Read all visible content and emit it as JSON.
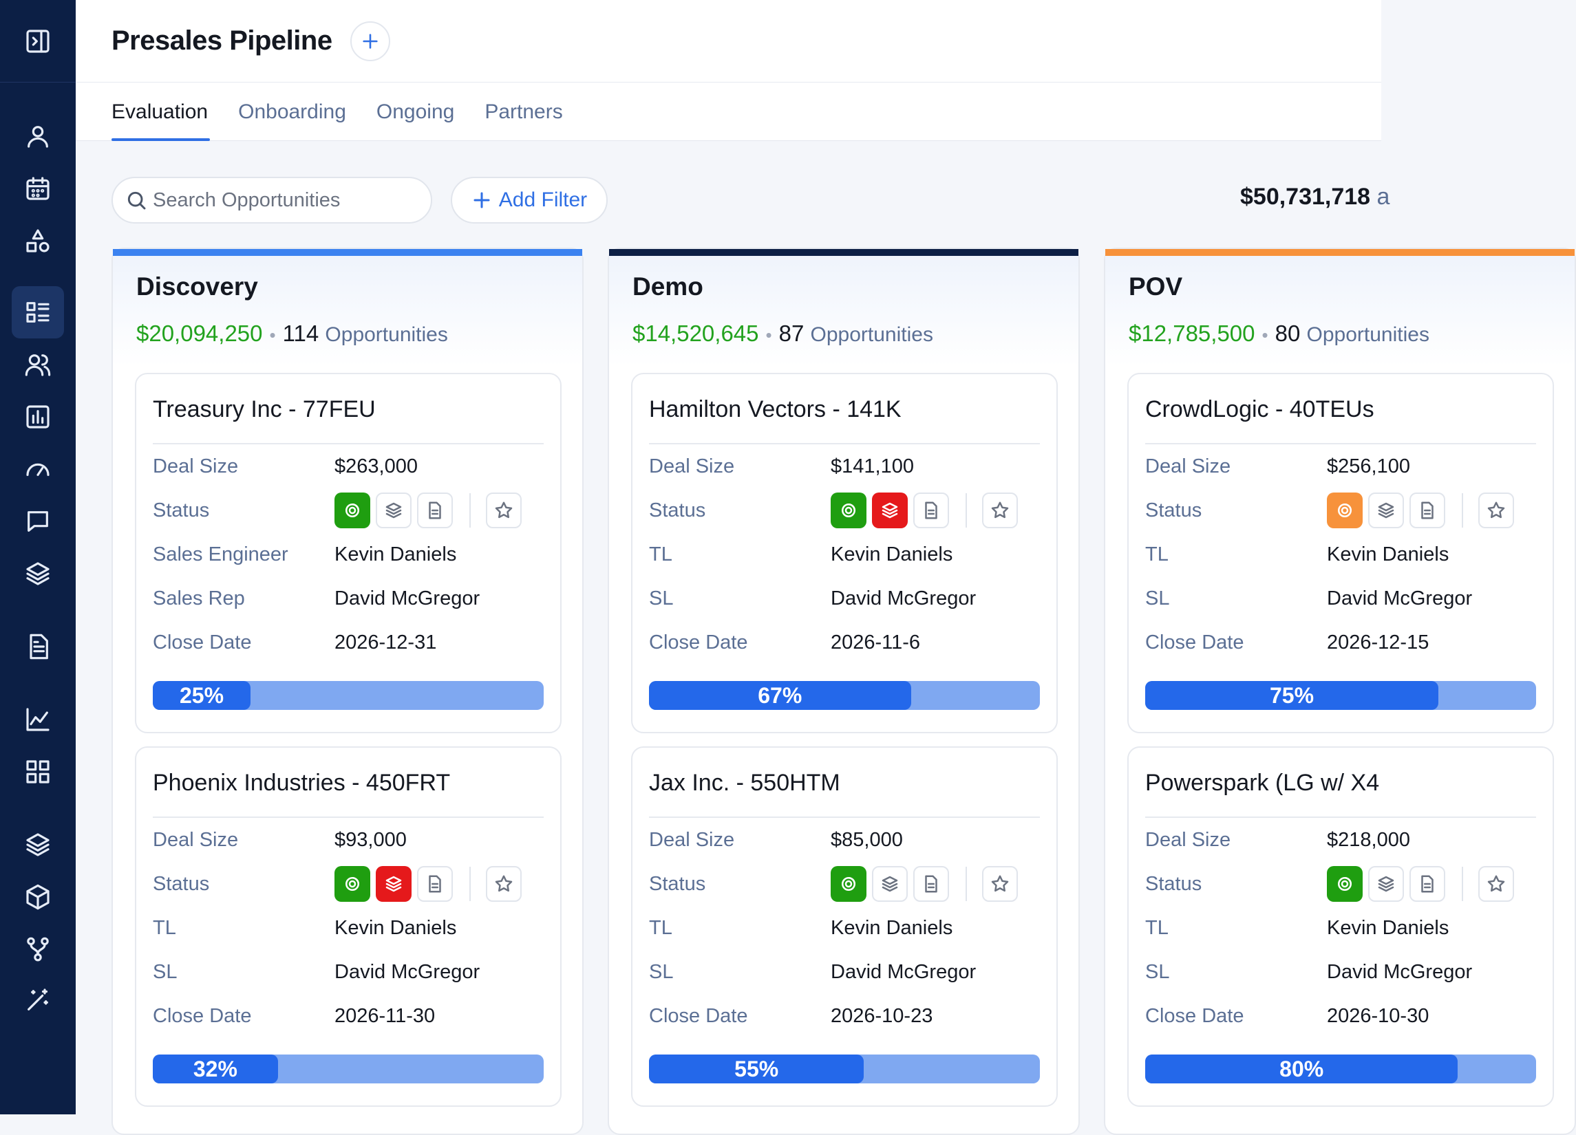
{
  "header": {
    "title": "Presales Pipeline"
  },
  "tabs": [
    {
      "label": "Evaluation",
      "active": true
    },
    {
      "label": "Onboarding",
      "active": false
    },
    {
      "label": "Ongoing",
      "active": false
    },
    {
      "label": "Partners",
      "active": false
    }
  ],
  "toolbar": {
    "search_placeholder": "Search Opportunities",
    "add_filter_label": "Add Filter",
    "total_amount": "$50,731,718",
    "total_trail": "a"
  },
  "colors": {
    "green": "#1f9e10",
    "red": "#e5191b",
    "orange": "#f7923b",
    "blue": "#2f6fe4",
    "navy": "#0c1f45"
  },
  "columns": [
    {
      "title": "Discovery",
      "amount": "$20,094,250",
      "count": "114",
      "count_label": "Opportunities",
      "accent": "#3b82f0",
      "cards": [
        {
          "title": "Treasury Inc - 77FEU",
          "rows": [
            {
              "label": "Deal Size",
              "value": "$263,000"
            },
            {
              "label": "Status",
              "status": [
                "green",
                "none",
                "none"
              ]
            },
            {
              "label": "Sales Engineer",
              "value": "Kevin Daniels"
            },
            {
              "label": "Sales Rep",
              "value": "David McGregor"
            },
            {
              "label": "Close Date",
              "value": "2026-12-31"
            }
          ],
          "progress": 0.25,
          "progress_label": "25%"
        },
        {
          "title": "Phoenix Industries - 450FRT",
          "rows": [
            {
              "label": "Deal Size",
              "value": "$93,000"
            },
            {
              "label": "Status",
              "status": [
                "green",
                "red",
                "none"
              ]
            },
            {
              "label": "TL",
              "value": "Kevin Daniels"
            },
            {
              "label": "SL",
              "value": "David McGregor"
            },
            {
              "label": "Close Date",
              "value": "2026-11-30"
            }
          ],
          "progress": 0.32,
          "progress_label": "32%"
        }
      ]
    },
    {
      "title": "Demo",
      "amount": "$14,520,645",
      "count": "87",
      "count_label": "Opportunities",
      "accent": "#0c1f45",
      "cards": [
        {
          "title": "Hamilton Vectors - 141K",
          "rows": [
            {
              "label": "Deal Size",
              "value": "$141,100"
            },
            {
              "label": "Status",
              "status": [
                "green",
                "red",
                "none"
              ]
            },
            {
              "label": "TL",
              "value": "Kevin Daniels"
            },
            {
              "label": "SL",
              "value": "David McGregor"
            },
            {
              "label": "Close Date",
              "value": "2026-11-6"
            }
          ],
          "progress": 0.67,
          "progress_label": "67%"
        },
        {
          "title": "Jax Inc. - 550HTM",
          "rows": [
            {
              "label": "Deal Size",
              "value": "$85,000"
            },
            {
              "label": "Status",
              "status": [
                "green",
                "none",
                "none"
              ]
            },
            {
              "label": "TL",
              "value": "Kevin Daniels"
            },
            {
              "label": "SL",
              "value": "David McGregor"
            },
            {
              "label": "Close Date",
              "value": "2026-10-23"
            }
          ],
          "progress": 0.55,
          "progress_label": "55%"
        }
      ]
    },
    {
      "title": "POV",
      "amount": "$12,785,500",
      "count": "80",
      "count_label": "Opportunities",
      "accent": "#f7923b",
      "cards": [
        {
          "title": "CrowdLogic - 40TEUs",
          "rows": [
            {
              "label": "Deal Size",
              "value": "$256,100"
            },
            {
              "label": "Status",
              "status": [
                "orange",
                "none",
                "none"
              ]
            },
            {
              "label": "TL",
              "value": "Kevin Daniels"
            },
            {
              "label": "SL",
              "value": "David McGregor"
            },
            {
              "label": "Close Date",
              "value": "2026-12-15"
            }
          ],
          "progress": 0.75,
          "progress_label": "75%"
        },
        {
          "title": "Powerspark (LG w/ X4",
          "rows": [
            {
              "label": "Deal Size",
              "value": "$218,000"
            },
            {
              "label": "Status",
              "status": [
                "green",
                "none",
                "none"
              ]
            },
            {
              "label": "TL",
              "value": "Kevin Daniels"
            },
            {
              "label": "SL",
              "value": "David McGregor"
            },
            {
              "label": "Close Date",
              "value": "2026-10-30"
            }
          ],
          "progress": 0.8,
          "progress_label": "80%"
        }
      ]
    }
  ]
}
